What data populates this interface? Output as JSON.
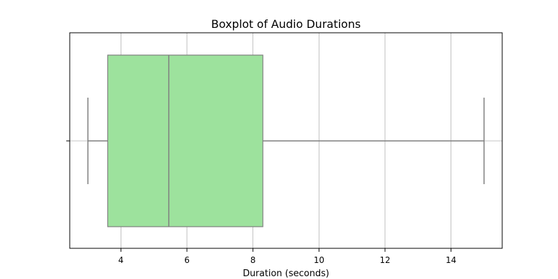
{
  "chart_data": {
    "type": "boxplot",
    "title": "Boxplot of Audio Durations",
    "xlabel": "Duration (seconds)",
    "ylabel": "",
    "orientation": "horizontal",
    "xlim": [
      2.45,
      15.55
    ],
    "xticks": [
      4,
      6,
      8,
      10,
      12,
      14
    ],
    "grid": true,
    "box": {
      "whisker_low": 3.0,
      "q1": 3.6,
      "median": 5.45,
      "q3": 8.3,
      "whisker_high": 15.0
    },
    "colors": {
      "box_fill": "#9de29d",
      "box_edge": "#7f7f7f",
      "grid": "#b0b0b0",
      "frame": "#000000"
    }
  }
}
